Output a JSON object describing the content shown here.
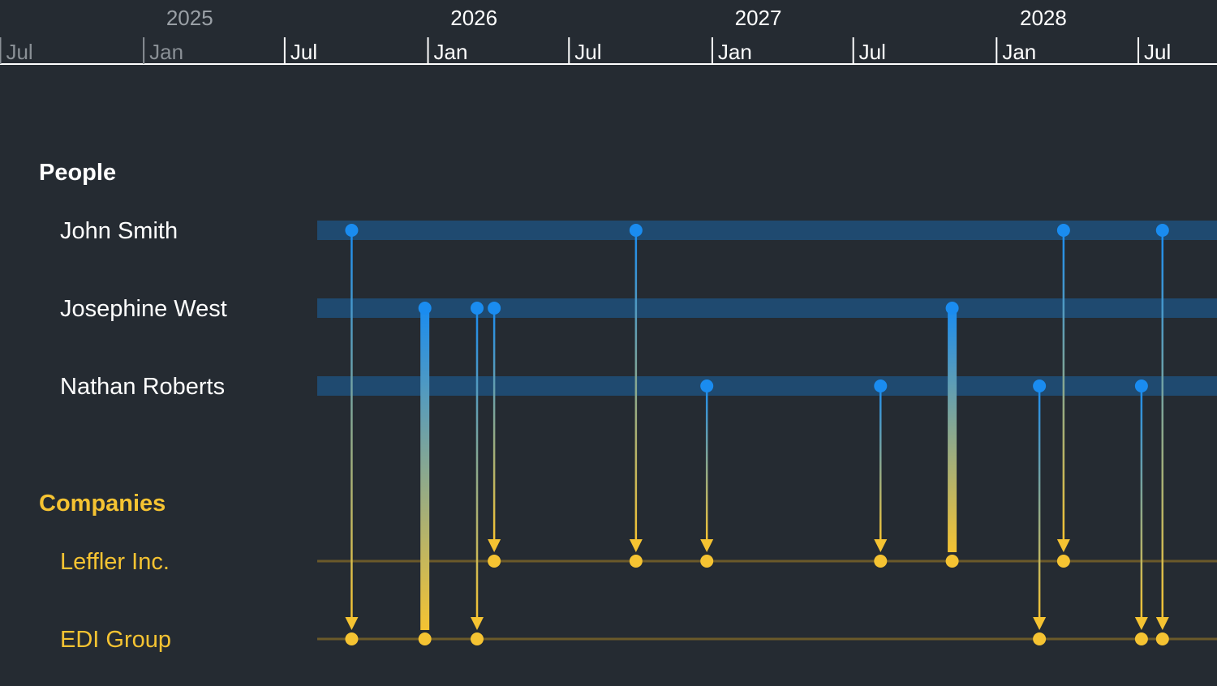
{
  "chart_data": {
    "type": "timeline",
    "title": "",
    "colors": {
      "background": "#252b32",
      "people": "#1a8cf0",
      "people_lane": "#1f4a70",
      "companies": "#f5c332",
      "companies_lane": "#6b5a2a",
      "axis": "#ffffff"
    },
    "axis": {
      "x_range": [
        "2024-09-01",
        "2028-10-10"
      ],
      "years": [
        {
          "label": "2025",
          "date": "2025-03-01",
          "faded": true
        },
        {
          "label": "2026",
          "date": "2026-03-01",
          "faded": false
        },
        {
          "label": "2027",
          "date": "2027-03-01",
          "faded": false
        },
        {
          "label": "2028",
          "date": "2028-03-01",
          "faded": false
        }
      ],
      "ticks": [
        {
          "label": "Jul",
          "date": "2024-07-01",
          "faded": true
        },
        {
          "label": "Jan",
          "date": "2025-01-01",
          "faded": true
        },
        {
          "label": "Jul",
          "date": "2025-07-01",
          "faded": false
        },
        {
          "label": "Jan",
          "date": "2026-01-01",
          "faded": false
        },
        {
          "label": "Jul",
          "date": "2026-07-01",
          "faded": false
        },
        {
          "label": "Jan",
          "date": "2027-01-01",
          "faded": false
        },
        {
          "label": "Jul",
          "date": "2027-07-01",
          "faded": false
        },
        {
          "label": "Jan",
          "date": "2028-01-01",
          "faded": false
        },
        {
          "label": "Jul",
          "date": "2028-07-01",
          "faded": false
        }
      ]
    },
    "groups": [
      {
        "id": "people",
        "title": "People",
        "rows": [
          {
            "id": "john",
            "label": "John Smith"
          },
          {
            "id": "josephine",
            "label": "Josephine West"
          },
          {
            "id": "nathan",
            "label": "Nathan Roberts"
          }
        ]
      },
      {
        "id": "companies",
        "title": "Companies",
        "rows": [
          {
            "id": "leffler",
            "label": "Leffler Inc."
          },
          {
            "id": "edi",
            "label": "EDI Group"
          }
        ]
      }
    ],
    "links": [
      {
        "from": "john",
        "to": "edi",
        "date": "2025-09-25",
        "weight": 1
      },
      {
        "from": "josephine",
        "to": "edi",
        "date": "2025-12-28",
        "weight": 4
      },
      {
        "from": "josephine",
        "to": "edi",
        "date": "2026-03-05",
        "weight": 1
      },
      {
        "from": "josephine",
        "to": "leffler",
        "date": "2026-03-27",
        "weight": 1
      },
      {
        "from": "john",
        "to": "leffler",
        "date": "2026-09-25",
        "weight": 1
      },
      {
        "from": "nathan",
        "to": "leffler",
        "date": "2026-12-25",
        "weight": 1
      },
      {
        "from": "nathan",
        "to": "leffler",
        "date": "2027-08-05",
        "weight": 1
      },
      {
        "from": "josephine",
        "to": "leffler",
        "date": "2027-11-05",
        "weight": 4
      },
      {
        "from": "nathan",
        "to": "edi",
        "date": "2028-02-25",
        "weight": 1
      },
      {
        "from": "john",
        "to": "leffler",
        "date": "2028-03-27",
        "weight": 1
      },
      {
        "from": "nathan",
        "to": "edi",
        "date": "2028-07-05",
        "weight": 1
      },
      {
        "from": "john",
        "to": "edi",
        "date": "2028-08-01",
        "weight": 1
      }
    ]
  }
}
